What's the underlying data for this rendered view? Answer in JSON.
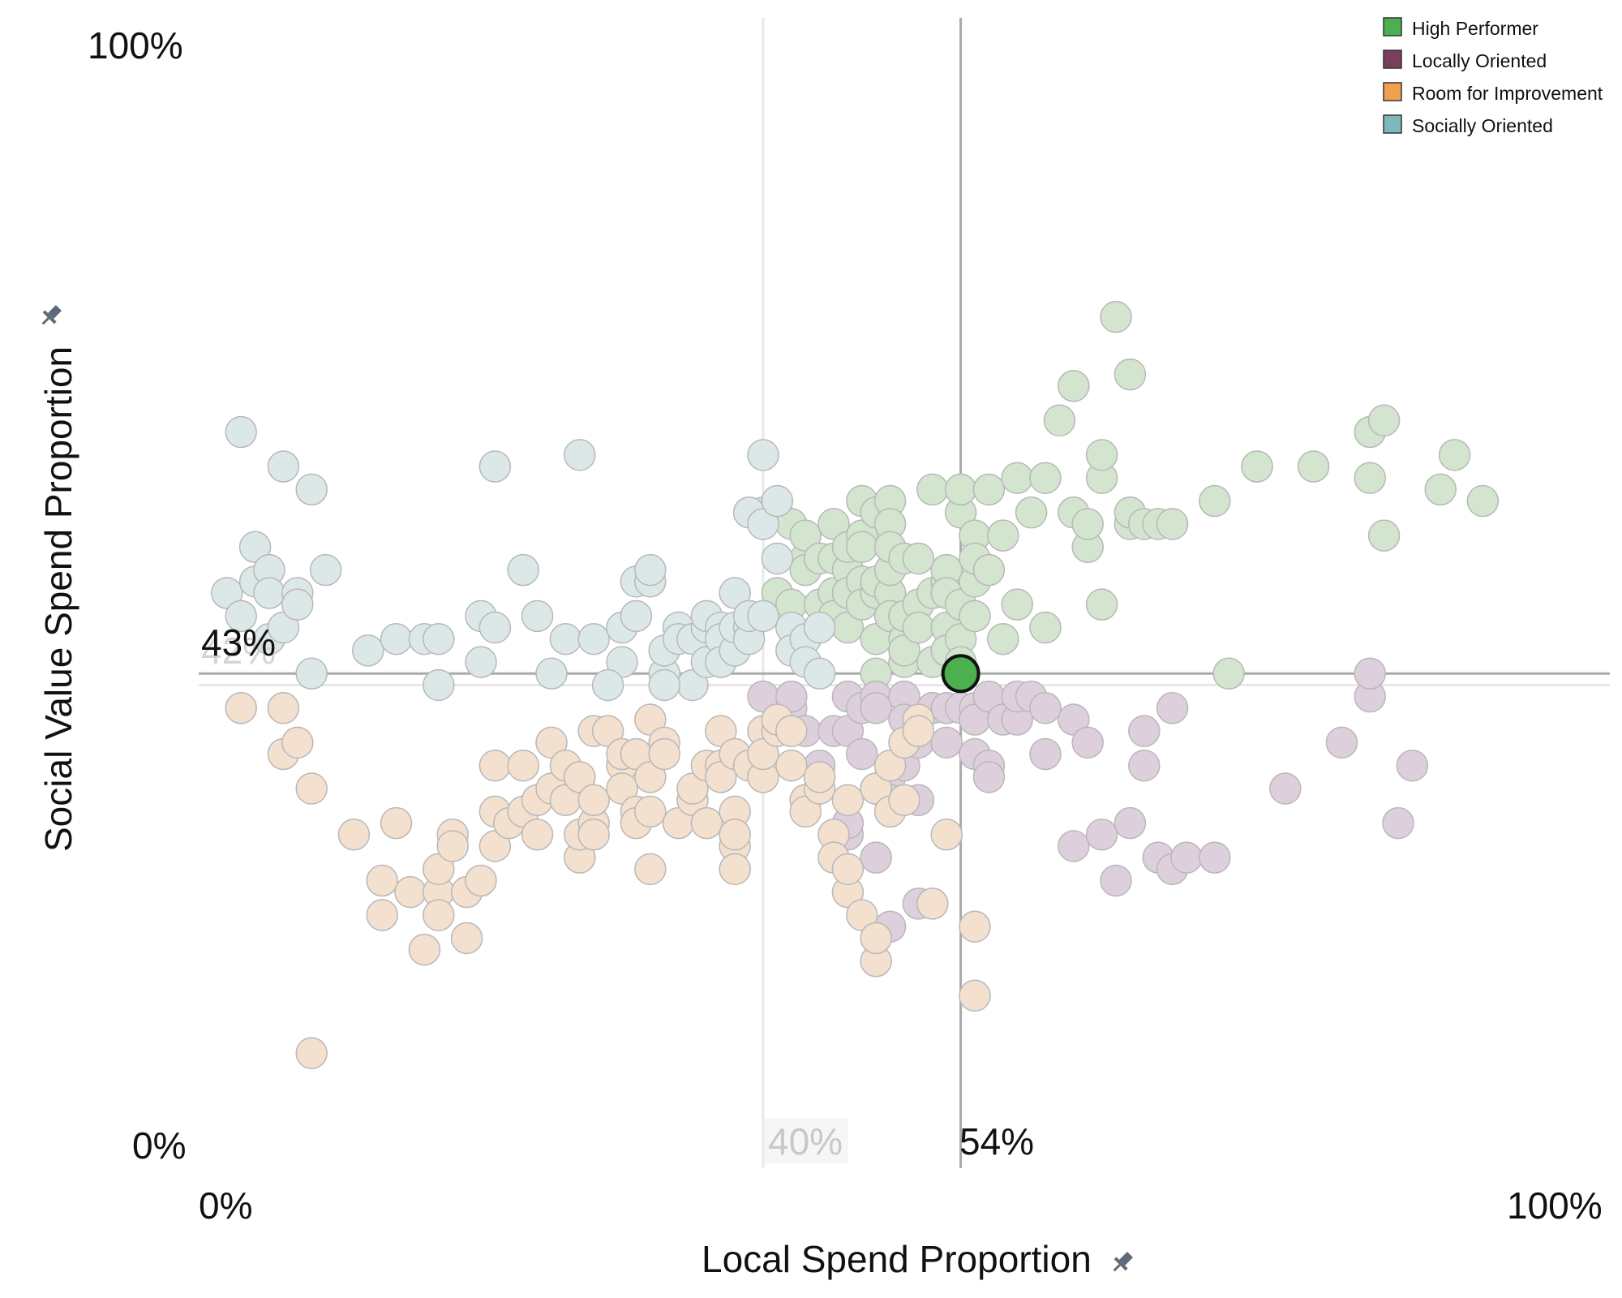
{
  "chart_data": {
    "type": "scatter",
    "xlabel": "Local Spend Proportion",
    "ylabel": "Social Value Spend Proportion",
    "xlim": [
      0,
      100
    ],
    "ylim": [
      0,
      100
    ],
    "x_ticks": [
      "0%",
      "100%"
    ],
    "y_ticks": [
      "0%",
      "100%"
    ],
    "reference_lines": {
      "highlight": {
        "x": 54,
        "y": 43,
        "x_label": "54%",
        "y_label": "43%"
      },
      "average": {
        "x": 40,
        "y": 42,
        "x_label": "40%",
        "y_label": "42%"
      }
    },
    "legend": {
      "position": "top-right",
      "items": [
        {
          "name": "High Performer",
          "color": "#4caf50"
        },
        {
          "name": "Locally Oriented",
          "color": "#7b3f5e"
        },
        {
          "name": "Room for Improvement",
          "color": "#f0a050"
        },
        {
          "name": "Socially Oriented",
          "color": "#7fb8b8"
        }
      ]
    },
    "highlight_point": {
      "x": 54,
      "y": 43,
      "category": "High Performer"
    },
    "series": [
      {
        "name": "High Performer",
        "color": "#d3e5cf",
        "points": [
          [
            40,
            57
          ],
          [
            41,
            57
          ],
          [
            41,
            50
          ],
          [
            42,
            49
          ],
          [
            42,
            56
          ],
          [
            43,
            53
          ],
          [
            43,
            55
          ],
          [
            43,
            52
          ],
          [
            44,
            53
          ],
          [
            44,
            47
          ],
          [
            44,
            49
          ],
          [
            45,
            50
          ],
          [
            45,
            56
          ],
          [
            45,
            53
          ],
          [
            45,
            48
          ],
          [
            46,
            52
          ],
          [
            46,
            50
          ],
          [
            46,
            54
          ],
          [
            46,
            47
          ],
          [
            47,
            51
          ],
          [
            47,
            49
          ],
          [
            47,
            58
          ],
          [
            47,
            55
          ],
          [
            47,
            54
          ],
          [
            48,
            50
          ],
          [
            48,
            46
          ],
          [
            48,
            43
          ],
          [
            48,
            51
          ],
          [
            48,
            57
          ],
          [
            49,
            58
          ],
          [
            49,
            56
          ],
          [
            49,
            50
          ],
          [
            49,
            52
          ],
          [
            49,
            54
          ],
          [
            49,
            48
          ],
          [
            50,
            44
          ],
          [
            50,
            46
          ],
          [
            50,
            48
          ],
          [
            50,
            53
          ],
          [
            50,
            45
          ],
          [
            51,
            53
          ],
          [
            51,
            49
          ],
          [
            51,
            47
          ],
          [
            52,
            50
          ],
          [
            52,
            44
          ],
          [
            52,
            59
          ],
          [
            53,
            47
          ],
          [
            53,
            51
          ],
          [
            53,
            52
          ],
          [
            53,
            50
          ],
          [
            53,
            45
          ],
          [
            54,
            46
          ],
          [
            54,
            49
          ],
          [
            54,
            57
          ],
          [
            54,
            59
          ],
          [
            54,
            44
          ],
          [
            55,
            55
          ],
          [
            55,
            51
          ],
          [
            55,
            53
          ],
          [
            55,
            48
          ],
          [
            56,
            52
          ],
          [
            56,
            59
          ],
          [
            57,
            55
          ],
          [
            57,
            46
          ],
          [
            58,
            49
          ],
          [
            58,
            60
          ],
          [
            59,
            57
          ],
          [
            60,
            47
          ],
          [
            60,
            60
          ],
          [
            61,
            65
          ],
          [
            62,
            57
          ],
          [
            62,
            68
          ],
          [
            63,
            54
          ],
          [
            63,
            56
          ],
          [
            64,
            60
          ],
          [
            64,
            62
          ],
          [
            64,
            49
          ],
          [
            65,
            74
          ],
          [
            66,
            56
          ],
          [
            66,
            69
          ],
          [
            66,
            57
          ],
          [
            67,
            56
          ],
          [
            68,
            56
          ],
          [
            69,
            56
          ],
          [
            72,
            58
          ],
          [
            73,
            43
          ],
          [
            75,
            61
          ],
          [
            75,
            61
          ],
          [
            79,
            61
          ],
          [
            83,
            60
          ],
          [
            83,
            64
          ],
          [
            84,
            65
          ],
          [
            84,
            55
          ],
          [
            91,
            58
          ],
          [
            89,
            62
          ],
          [
            88,
            59
          ]
        ]
      },
      {
        "name": "Locally Oriented",
        "color": "#ddd0dc",
        "points": [
          [
            40,
            41
          ],
          [
            41,
            39
          ],
          [
            42,
            39
          ],
          [
            42,
            40
          ],
          [
            42,
            41
          ],
          [
            43,
            32
          ],
          [
            43,
            38
          ],
          [
            44,
            34
          ],
          [
            44,
            35
          ],
          [
            45,
            38
          ],
          [
            46,
            29
          ],
          [
            46,
            30
          ],
          [
            46,
            38
          ],
          [
            46,
            41
          ],
          [
            47,
            40
          ],
          [
            47,
            36
          ],
          [
            48,
            27
          ],
          [
            48,
            41
          ],
          [
            48,
            40
          ],
          [
            48,
            33
          ],
          [
            49,
            34
          ],
          [
            49,
            32
          ],
          [
            49,
            21
          ],
          [
            50,
            41
          ],
          [
            50,
            39
          ],
          [
            50,
            35
          ],
          [
            51,
            23
          ],
          [
            51,
            32
          ],
          [
            51,
            37
          ],
          [
            52,
            40
          ],
          [
            52,
            40
          ],
          [
            53,
            40
          ],
          [
            53,
            37
          ],
          [
            53,
            40
          ],
          [
            54,
            40
          ],
          [
            55,
            40
          ],
          [
            55,
            39
          ],
          [
            55,
            36
          ],
          [
            56,
            35
          ],
          [
            56,
            34
          ],
          [
            56,
            41
          ],
          [
            57,
            39
          ],
          [
            58,
            39
          ],
          [
            58,
            41
          ],
          [
            59,
            41
          ],
          [
            60,
            36
          ],
          [
            62,
            28
          ],
          [
            62,
            39
          ],
          [
            63,
            37
          ],
          [
            64,
            29
          ],
          [
            65,
            25
          ],
          [
            67,
            35
          ],
          [
            67,
            38
          ],
          [
            68,
            27
          ],
          [
            69,
            40
          ],
          [
            69,
            26
          ],
          [
            70,
            27
          ],
          [
            72,
            27
          ],
          [
            77,
            33
          ],
          [
            81,
            37
          ],
          [
            83,
            41
          ],
          [
            83,
            43
          ],
          [
            85,
            30
          ],
          [
            86,
            35
          ],
          [
            66,
            30
          ],
          [
            60,
            40
          ]
        ]
      },
      {
        "name": "Room for Improvement",
        "color": "#f3e0cf",
        "points": [
          [
            3,
            40
          ],
          [
            6,
            40
          ],
          [
            6,
            36
          ],
          [
            7,
            37
          ],
          [
            8,
            33
          ],
          [
            11,
            29
          ],
          [
            13,
            25
          ],
          [
            13,
            22
          ],
          [
            14,
            30
          ],
          [
            15,
            24
          ],
          [
            16,
            19
          ],
          [
            17,
            24
          ],
          [
            17,
            22
          ],
          [
            17,
            26
          ],
          [
            18,
            29
          ],
          [
            18,
            28
          ],
          [
            19,
            20
          ],
          [
            19,
            24
          ],
          [
            20,
            25
          ],
          [
            21,
            35
          ],
          [
            21,
            28
          ],
          [
            21,
            31
          ],
          [
            22,
            30
          ],
          [
            23,
            31
          ],
          [
            23,
            35
          ],
          [
            24,
            32
          ],
          [
            24,
            29
          ],
          [
            25,
            33
          ],
          [
            25,
            37
          ],
          [
            26,
            32
          ],
          [
            26,
            35
          ],
          [
            27,
            27
          ],
          [
            27,
            29
          ],
          [
            27,
            34
          ],
          [
            28,
            30
          ],
          [
            28,
            29
          ],
          [
            28,
            32
          ],
          [
            28,
            38
          ],
          [
            29,
            38
          ],
          [
            30,
            35
          ],
          [
            30,
            33
          ],
          [
            30,
            36
          ],
          [
            31,
            31
          ],
          [
            31,
            36
          ],
          [
            31,
            30
          ],
          [
            32,
            34
          ],
          [
            32,
            31
          ],
          [
            32,
            39
          ],
          [
            32,
            26
          ],
          [
            33,
            37
          ],
          [
            33,
            36
          ],
          [
            34,
            30
          ],
          [
            35,
            32
          ],
          [
            35,
            33
          ],
          [
            36,
            35
          ],
          [
            36,
            30
          ],
          [
            37,
            35
          ],
          [
            37,
            38
          ],
          [
            37,
            34
          ],
          [
            38,
            36
          ],
          [
            38,
            31
          ],
          [
            38,
            28
          ],
          [
            38,
            26
          ],
          [
            38,
            29
          ],
          [
            39,
            35
          ],
          [
            40,
            38
          ],
          [
            40,
            34
          ],
          [
            40,
            36
          ],
          [
            41,
            38
          ],
          [
            41,
            39
          ],
          [
            42,
            38
          ],
          [
            42,
            35
          ],
          [
            43,
            32
          ],
          [
            43,
            31
          ],
          [
            44,
            33
          ],
          [
            44,
            34
          ],
          [
            45,
            29
          ],
          [
            45,
            27
          ],
          [
            46,
            24
          ],
          [
            46,
            26
          ],
          [
            46,
            32
          ],
          [
            47,
            22
          ],
          [
            48,
            18
          ],
          [
            48,
            20
          ],
          [
            48,
            33
          ],
          [
            49,
            35
          ],
          [
            49,
            31
          ],
          [
            50,
            37
          ],
          [
            50,
            32
          ],
          [
            51,
            39
          ],
          [
            51,
            38
          ],
          [
            52,
            23
          ],
          [
            53,
            29
          ],
          [
            55,
            21
          ],
          [
            55,
            15
          ],
          [
            8,
            10
          ]
        ]
      },
      {
        "name": "Socially Oriented",
        "color": "#dce8e8",
        "points": [
          [
            3,
            64
          ],
          [
            2,
            50
          ],
          [
            3,
            48
          ],
          [
            4,
            51
          ],
          [
            4,
            54
          ],
          [
            5,
            52
          ],
          [
            5,
            50
          ],
          [
            5,
            46
          ],
          [
            6,
            47
          ],
          [
            6,
            61
          ],
          [
            7,
            50
          ],
          [
            7,
            49
          ],
          [
            8,
            59
          ],
          [
            8,
            43
          ],
          [
            9,
            52
          ],
          [
            12,
            45
          ],
          [
            14,
            46
          ],
          [
            16,
            46
          ],
          [
            17,
            46
          ],
          [
            17,
            42
          ],
          [
            20,
            44
          ],
          [
            20,
            48
          ],
          [
            21,
            47
          ],
          [
            21,
            61
          ],
          [
            23,
            52
          ],
          [
            24,
            48
          ],
          [
            25,
            43
          ],
          [
            26,
            46
          ],
          [
            27,
            62
          ],
          [
            28,
            46
          ],
          [
            30,
            47
          ],
          [
            31,
            48
          ],
          [
            31,
            51
          ],
          [
            32,
            51
          ],
          [
            32,
            52
          ],
          [
            33,
            43
          ],
          [
            33,
            45
          ],
          [
            34,
            47
          ],
          [
            34,
            46
          ],
          [
            35,
            42
          ],
          [
            35,
            46
          ],
          [
            36,
            47
          ],
          [
            36,
            44
          ],
          [
            36,
            48
          ],
          [
            37,
            47
          ],
          [
            37,
            46
          ],
          [
            37,
            44
          ],
          [
            38,
            45
          ],
          [
            38,
            47
          ],
          [
            38,
            50
          ],
          [
            39,
            47
          ],
          [
            39,
            46
          ],
          [
            39,
            48
          ],
          [
            39,
            57
          ],
          [
            40,
            48
          ],
          [
            40,
            56
          ],
          [
            40,
            62
          ],
          [
            41,
            58
          ],
          [
            41,
            53
          ],
          [
            42,
            47
          ],
          [
            42,
            45
          ],
          [
            43,
            46
          ],
          [
            43,
            44
          ],
          [
            44,
            47
          ],
          [
            44,
            43
          ],
          [
            30,
            44
          ],
          [
            29,
            42
          ],
          [
            33,
            42
          ]
        ]
      }
    ]
  }
}
